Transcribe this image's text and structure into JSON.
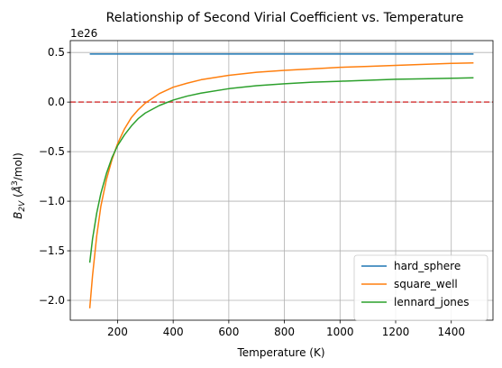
{
  "chart_data": {
    "type": "line",
    "title": "Relationship of Second Virial Coefficient vs. Temperature",
    "xlabel": "Temperature (K)",
    "ylabel_parts": [
      "B",
      "2V",
      " (",
      "Å",
      "3",
      "/mol)"
    ],
    "offset_label": "1e26",
    "xlim": [
      30,
      1550
    ],
    "ylim": [
      -2.2,
      0.62
    ],
    "x_ticks": [
      200,
      400,
      600,
      800,
      1000,
      1200,
      1400
    ],
    "x_tick_labels": [
      "200",
      "400",
      "600",
      "800",
      "1000",
      "1200",
      "1400"
    ],
    "y_ticks": [
      0.5,
      0.0,
      -0.5,
      -1.0,
      -1.5,
      -2.0
    ],
    "y_tick_labels": [
      "0.5",
      "0.0",
      "−0.5",
      "−1.0",
      "−1.5",
      "−2.0"
    ],
    "grid": true,
    "legend_position": "lower-right",
    "reference_line": {
      "y": 0.0,
      "color": "#d62728",
      "style": "dashed"
    },
    "series": [
      {
        "name": "hard_sphere",
        "color": "#1f77b4",
        "x": [
          100,
          1480
        ],
        "y": [
          0.485,
          0.485
        ]
      },
      {
        "name": "square_well",
        "color": "#ff7f0e",
        "x": [
          100,
          110,
          125,
          140,
          160,
          180,
          200,
          225,
          250,
          275,
          300,
          350,
          400,
          450,
          500,
          600,
          700,
          800,
          900,
          1000,
          1100,
          1200,
          1300,
          1400,
          1480
        ],
        "y": [
          -2.08,
          -1.75,
          -1.35,
          -1.05,
          -0.78,
          -0.58,
          -0.42,
          -0.27,
          -0.155,
          -0.075,
          -0.01,
          0.085,
          0.15,
          0.19,
          0.225,
          0.27,
          0.3,
          0.32,
          0.335,
          0.35,
          0.36,
          0.37,
          0.38,
          0.39,
          0.395
        ]
      },
      {
        "name": "lennard_jones",
        "color": "#2ca02c",
        "x": [
          100,
          110,
          125,
          140,
          160,
          180,
          200,
          225,
          250,
          275,
          300,
          350,
          400,
          450,
          500,
          600,
          700,
          800,
          900,
          1000,
          1100,
          1200,
          1300,
          1400,
          1480
        ],
        "y": [
          -1.62,
          -1.38,
          -1.12,
          -0.92,
          -0.72,
          -0.56,
          -0.44,
          -0.33,
          -0.24,
          -0.165,
          -0.11,
          -0.035,
          0.02,
          0.06,
          0.09,
          0.135,
          0.165,
          0.185,
          0.2,
          0.21,
          0.22,
          0.23,
          0.235,
          0.24,
          0.245
        ]
      }
    ]
  }
}
